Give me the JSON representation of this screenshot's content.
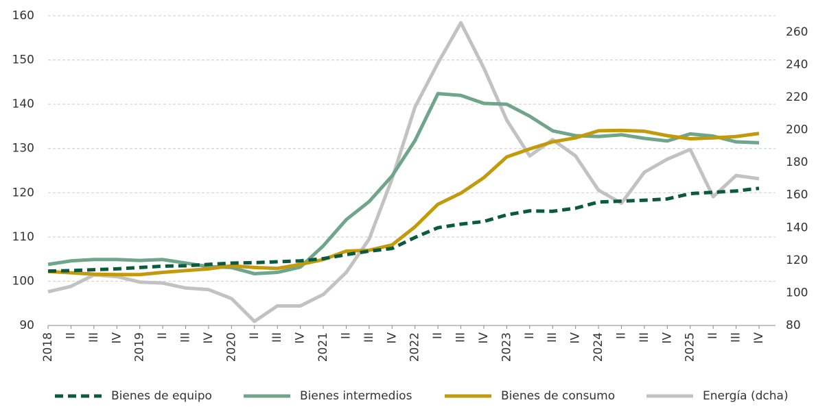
{
  "chart_data": {
    "type": "line",
    "categories": [
      "2018",
      "II",
      "III",
      "IV",
      "2019",
      "II",
      "III",
      "IV",
      "2020",
      "II",
      "III",
      "IV",
      "2021",
      "II",
      "III",
      "IV",
      "2022",
      "II",
      "III",
      "IV",
      "2023",
      "II",
      "III",
      "IV",
      "2024",
      "II",
      "III",
      "IV",
      "2025",
      "II",
      "III",
      "IV"
    ],
    "series": [
      {
        "name": "Bienes de equipo",
        "color": "#0b5a3d",
        "dashed": true,
        "values": [
          102.3,
          102.4,
          102.6,
          102.8,
          103.1,
          103.4,
          103.5,
          103.8,
          104.1,
          104.2,
          104.4,
          104.6,
          105.1,
          106.0,
          106.8,
          107.4,
          109.9,
          112.1,
          112.9,
          113.5,
          115.0,
          115.9,
          115.8,
          116.5,
          117.9,
          118.1,
          118.3,
          118.6,
          119.8,
          120.1,
          120.4,
          121.0
        ]
      },
      {
        "name": "Bienes intermedios",
        "color": "#6fa58a",
        "values": [
          103.8,
          104.6,
          104.9,
          104.9,
          104.7,
          104.9,
          104.1,
          103.3,
          103.1,
          101.7,
          102.0,
          103.2,
          108.0,
          113.9,
          118.0,
          123.8,
          131.8,
          142.4,
          142.0,
          140.2,
          140.0,
          137.3,
          134.0,
          132.9,
          132.7,
          133.1,
          132.3,
          131.7,
          133.3,
          132.8,
          131.5,
          131.3
        ]
      },
      {
        "name": "Bienes de consumo",
        "color": "#c39a0c",
        "values": [
          102.2,
          101.9,
          101.6,
          101.5,
          101.5,
          102.0,
          102.4,
          102.8,
          103.5,
          103.1,
          102.9,
          103.8,
          104.9,
          106.8,
          107.0,
          108.2,
          112.3,
          117.4,
          119.9,
          123.4,
          128.1,
          129.9,
          131.5,
          132.4,
          134.0,
          134.1,
          133.9,
          132.9,
          132.2,
          132.4,
          132.7,
          133.4
        ]
      },
      {
        "name": "Energía (dcha)",
        "color": "#c2c2c2",
        "axis": "y2",
        "values": [
          100.7,
          104,
          111,
          110,
          106.6,
          106,
          103,
          102,
          96.5,
          82.5,
          92,
          92,
          99,
          112.5,
          133,
          170,
          214,
          241,
          265.7,
          238,
          206,
          184,
          194,
          184,
          163,
          155,
          174,
          182,
          188,
          159,
          172,
          170
        ]
      }
    ],
    "ylim": [
      90,
      160
    ],
    "yticks": [
      90,
      100,
      110,
      120,
      130,
      140,
      150,
      160
    ],
    "y2lim": [
      80,
      270
    ],
    "y2ticks": [
      80,
      100,
      120,
      140,
      160,
      180,
      200,
      220,
      240,
      260
    ],
    "grid": true,
    "legend": "bottom"
  }
}
